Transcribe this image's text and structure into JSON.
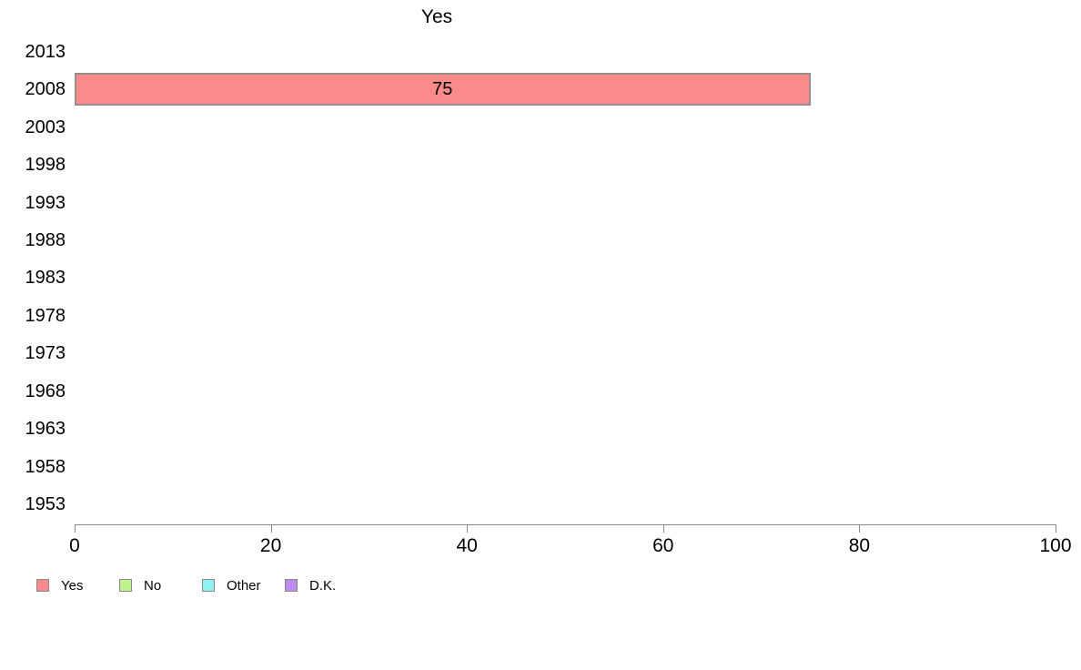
{
  "chart_data": {
    "type": "bar",
    "orientation": "horizontal",
    "title": "Yes",
    "categories": [
      "2013",
      "2008",
      "2003",
      "1998",
      "1993",
      "1988",
      "1983",
      "1978",
      "1973",
      "1968",
      "1963",
      "1958",
      "1953"
    ],
    "series": [
      {
        "name": "Yes",
        "color": "#FB8A8A",
        "values": [
          null,
          75,
          null,
          null,
          null,
          null,
          null,
          null,
          null,
          null,
          null,
          null,
          null
        ]
      }
    ],
    "bar_labels_shown": true,
    "xlim": [
      0,
      100
    ],
    "xticks": [
      0,
      20,
      40,
      60,
      80,
      100
    ],
    "grid": "off",
    "colors": {
      "bar_border": "#9c8b8b",
      "axis": "#8a8a8a",
      "text": "#000000",
      "background": "#ffffff"
    },
    "legend": {
      "position": "bottom-left",
      "items": [
        {
          "label": "Yes",
          "color": "#FB8A8A"
        },
        {
          "label": "No",
          "color": "#BDF28C"
        },
        {
          "label": "Other",
          "color": "#8DF2F0"
        },
        {
          "label": "D.K.",
          "color": "#BC8BEF"
        }
      ]
    }
  }
}
